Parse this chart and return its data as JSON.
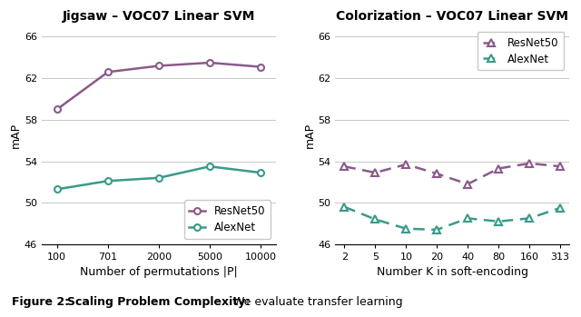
{
  "jigsaw": {
    "title": "Jigsaw – VOC07 Linear SVM",
    "xlabel_prefix": "Number of permutations |",
    "xlabel_italic": "P",
    "xlabel_suffix": "|",
    "ylabel": "mAP",
    "xtick_labels": [
      "100",
      "701",
      "2000",
      "5000",
      "10000"
    ],
    "resnet50_y": [
      59.0,
      62.6,
      63.2,
      63.5,
      63.1
    ],
    "alexnet_y": [
      51.3,
      52.1,
      52.4,
      53.5,
      52.9
    ],
    "resnet50_color": "#8B5A8B",
    "alexnet_color": "#3A9A8A",
    "ylim": [
      46,
      67
    ],
    "yticks": [
      46,
      50,
      54,
      58,
      62,
      66
    ]
  },
  "colorization": {
    "title": "Colorization – VOC07 Linear SVM",
    "xlabel_prefix": "Number ",
    "xlabel_italic": "K",
    "xlabel_suffix": " in soft-encoding",
    "ylabel": "mAP",
    "xtick_labels": [
      "2",
      "5",
      "10",
      "20",
      "40",
      "80",
      "160",
      "313"
    ],
    "resnet50_y": [
      53.5,
      52.9,
      53.7,
      52.8,
      51.8,
      53.3,
      53.8,
      53.5
    ],
    "alexnet_y": [
      49.6,
      48.4,
      47.5,
      47.4,
      48.5,
      48.2,
      48.5,
      49.5
    ],
    "resnet50_color": "#8B5A8B",
    "alexnet_color": "#3A9A8A",
    "ylim": [
      46,
      67
    ],
    "yticks": [
      46,
      50,
      54,
      58,
      62,
      66
    ]
  },
  "background_color": "#FFFFFF"
}
